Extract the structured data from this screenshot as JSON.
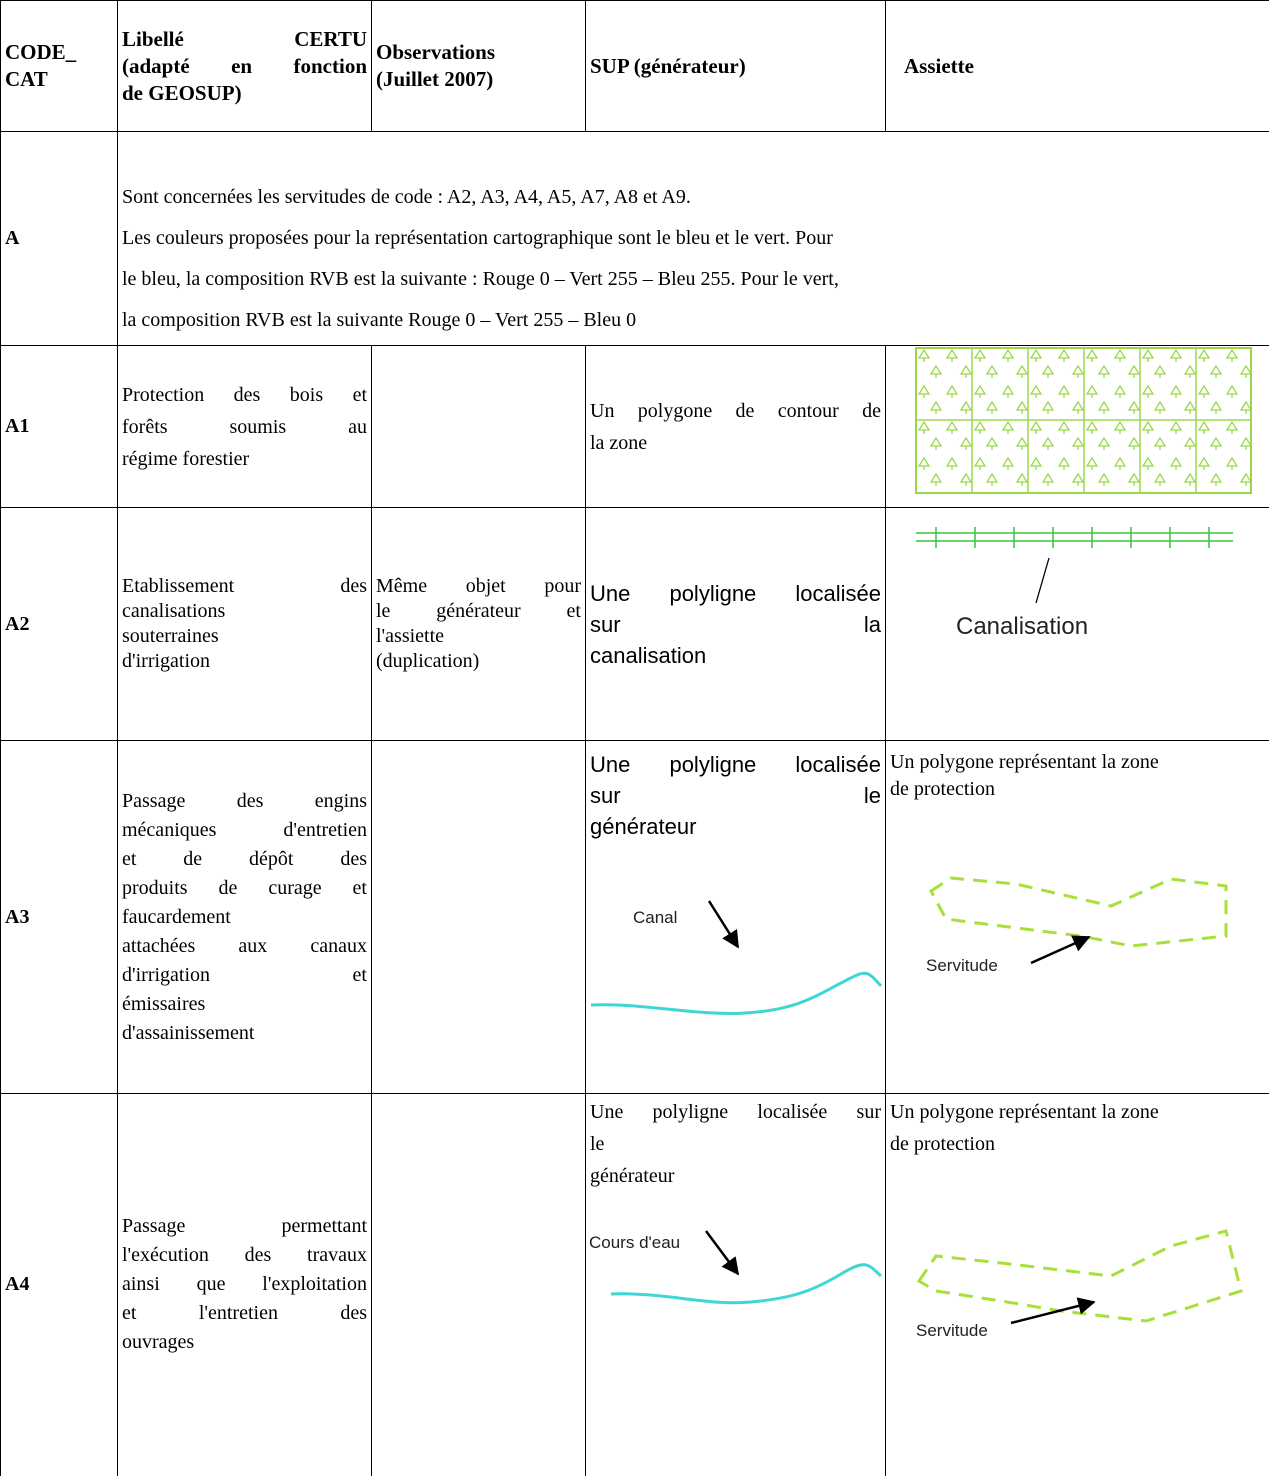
{
  "table": {
    "header": [
      [
        "CODE_",
        "CAT"
      ],
      [
        "Libellé CERTU",
        "(adapté en fonction",
        "de GEOSUP)"
      ],
      [
        "Observations",
        "(Juillet 2007)"
      ],
      [
        "SUP (générateur)"
      ],
      [
        "Assiette"
      ]
    ],
    "rows": [
      {
        "code": "A",
        "note": [
          "Sont concernées les servitudes de code : A2, A3, A4, A5, A7, A8 et A9.",
          "Les couleurs proposées pour la représentation cartographique sont le bleu et le vert. Pour",
          "le bleu, la composition RVB est la suivante : Rouge 0 – Vert 255 – Bleu 255. Pour le vert,",
          "la composition RVB est la suivante Rouge 0 – Vert 255 – Bleu 0"
        ]
      },
      {
        "code": "A1",
        "libelle": [
          "Protection des bois et",
          "forêts soumis au",
          "régime forestier"
        ],
        "sup": [
          "Un polygone de contour de",
          "la zone"
        ]
      },
      {
        "code": "A2",
        "libelle": [
          "Etablissement des",
          "canalisations",
          "souterraines",
          "d'irrigation"
        ],
        "observations": [
          "Même objet pour",
          "le générateur et",
          "l'assiette",
          "(duplication)"
        ],
        "sup": [
          "Une polyligne localisée",
          "sur la",
          "canalisation"
        ],
        "assiette_image_label": "Canalisation"
      },
      {
        "code": "A3",
        "libelle": [
          "Passage des engins",
          "mécaniques d'entretien",
          "et de dépôt des",
          "produits de curage et",
          "faucardement",
          "attachées aux canaux",
          "d'irrigation et",
          "émissaires",
          "d'assainissement"
        ],
        "sup": [
          "Une polyligne localisée",
          "sur le",
          "générateur"
        ],
        "sup_image_label": "Canal",
        "assiette": [
          "Un polygone représentant la zone",
          "de protection"
        ],
        "assiette_image_label": "Servitude"
      },
      {
        "code": "A4",
        "libelle": [
          "Passage permettant",
          "l'exécution des travaux",
          "ainsi que l'exploitation",
          "et l'entretien des",
          "ouvrages"
        ],
        "sup": [
          "Une polyligne localisée sur",
          "le",
          "générateur"
        ],
        "sup_image_label": "Cours d'eau",
        "assiette": [
          "Un polygone représentant la zone",
          "de protection"
        ],
        "assiette_image_label": "Servitude"
      }
    ]
  }
}
